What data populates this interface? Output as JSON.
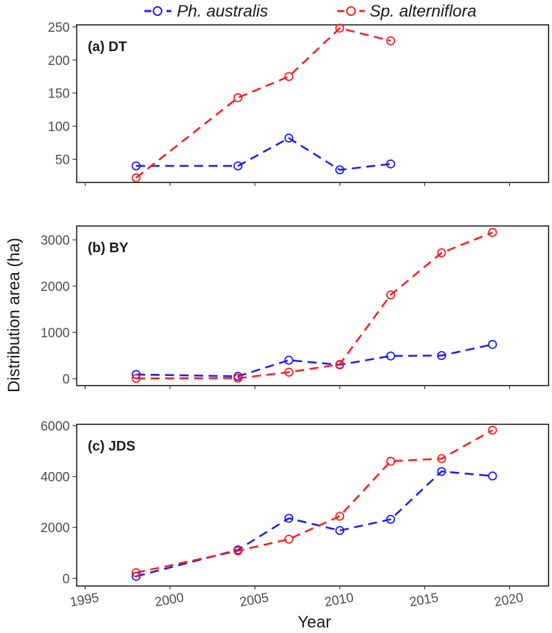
{
  "chart_data": {
    "type": "line",
    "xlabel": "Year",
    "ylabel": "Distribution area (ha)",
    "xlim": [
      1994.5,
      2022.3
    ],
    "xticks": [
      1995,
      2000,
      2005,
      2010,
      2015,
      2020
    ],
    "legend": {
      "position": "top",
      "entries": [
        {
          "name": "Ph. australis",
          "color": "#1a1aff"
        },
        {
          "name": "Sp. alterniflora",
          "color": "#ff1a1a"
        }
      ]
    },
    "panels": [
      {
        "label": "(a) DT",
        "ylim": [
          15,
          253
        ],
        "yticks": [
          50,
          100,
          150,
          200,
          250
        ],
        "series": [
          {
            "name": "Ph. australis",
            "color": "#1a1aff",
            "points": [
              [
                1998,
                40
              ],
              [
                2004,
                40
              ],
              [
                2007,
                82
              ],
              [
                2010,
                34
              ],
              [
                2013,
                43
              ]
            ]
          },
          {
            "name": "Sp. alterniflora",
            "color": "#ff1a1a",
            "points": [
              [
                1998,
                22
              ],
              [
                2004,
                143
              ],
              [
                2007,
                175
              ],
              [
                2010,
                248
              ],
              [
                2013,
                229
              ]
            ]
          }
        ]
      },
      {
        "label": "(b) BY",
        "ylim": [
          -150,
          3300
        ],
        "yticks": [
          0,
          1000,
          2000,
          3000
        ],
        "series": [
          {
            "name": "Ph. australis",
            "color": "#1a1aff",
            "points": [
              [
                1998,
                90
              ],
              [
                2004,
                50
              ],
              [
                2007,
                400
              ],
              [
                2010,
                300
              ],
              [
                2013,
                490
              ],
              [
                2016,
                500
              ],
              [
                2019,
                740
              ]
            ]
          },
          {
            "name": "Sp. alterniflora",
            "color": "#ff1a1a",
            "points": [
              [
                1998,
                5
              ],
              [
                2004,
                10
              ],
              [
                2007,
                140
              ],
              [
                2010,
                310
              ],
              [
                2013,
                1810
              ],
              [
                2016,
                2720
              ],
              [
                2019,
                3160
              ]
            ]
          }
        ]
      },
      {
        "label": "(c) JDS",
        "ylim": [
          -300,
          6050
        ],
        "yticks": [
          0,
          2000,
          4000,
          6000
        ],
        "series": [
          {
            "name": "Ph. australis",
            "color": "#1a1aff",
            "points": [
              [
                1998,
                80
              ],
              [
                2004,
                1120
              ],
              [
                2007,
                2360
              ],
              [
                2010,
                1880
              ],
              [
                2013,
                2320
              ],
              [
                2016,
                4200
              ],
              [
                2019,
                4020
              ]
            ]
          },
          {
            "name": "Sp. alterniflora",
            "color": "#ff1a1a",
            "points": [
              [
                1998,
                220
              ],
              [
                2004,
                1080
              ],
              [
                2007,
                1540
              ],
              [
                2010,
                2440
              ],
              [
                2013,
                4600
              ],
              [
                2016,
                4700
              ],
              [
                2019,
                5820
              ]
            ]
          }
        ]
      }
    ]
  }
}
